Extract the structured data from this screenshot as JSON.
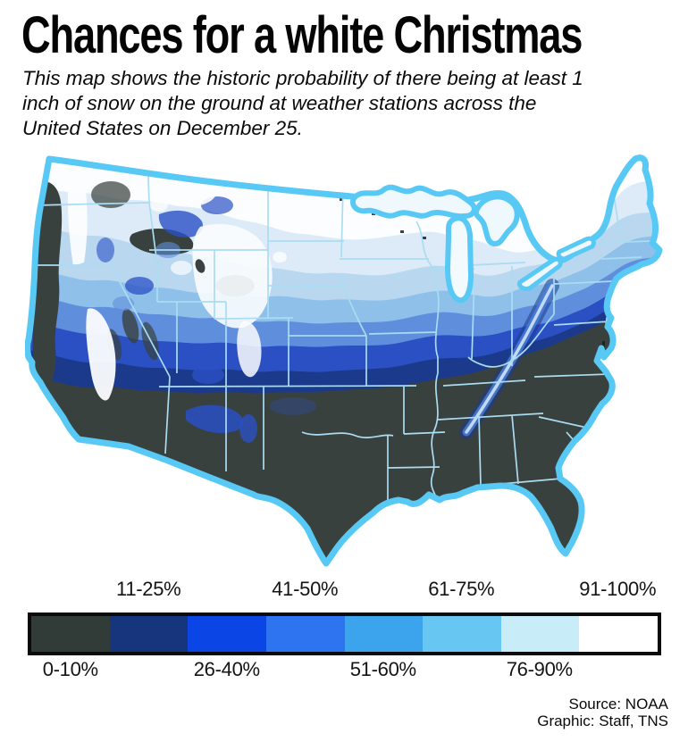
{
  "title": "Chances for a white Christmas",
  "subtitle_lines": [
    "This map shows the historic probability of there being at least 1",
    "inch of snow on the ground at weather stations across the",
    "United States on December 25."
  ],
  "map": {
    "description": "Map of the contiguous United States shaded by historic probability of at least 1 inch of snow on the ground on December 25",
    "outline_color": "#58c8f4"
  },
  "legend": {
    "classes": [
      {
        "range": "0-10%",
        "color": "#313b38",
        "label_position": "bottom"
      },
      {
        "range": "11-25%",
        "color": "#17357c",
        "label_position": "top"
      },
      {
        "range": "26-40%",
        "color": "#0b45e6",
        "label_position": "bottom"
      },
      {
        "range": "41-50%",
        "color": "#2e73ef",
        "label_position": "top"
      },
      {
        "range": "51-60%",
        "color": "#3ca3ed",
        "label_position": "bottom"
      },
      {
        "range": "61-75%",
        "color": "#67c6f2",
        "label_position": "top"
      },
      {
        "range": "76-90%",
        "color": "#c9ecf9",
        "label_position": "bottom"
      },
      {
        "range": "91-100%",
        "color": "#ffffff",
        "label_position": "top"
      }
    ]
  },
  "source": {
    "line1": "Source: NOAA",
    "line2": "Graphic: Staff, TNS"
  }
}
